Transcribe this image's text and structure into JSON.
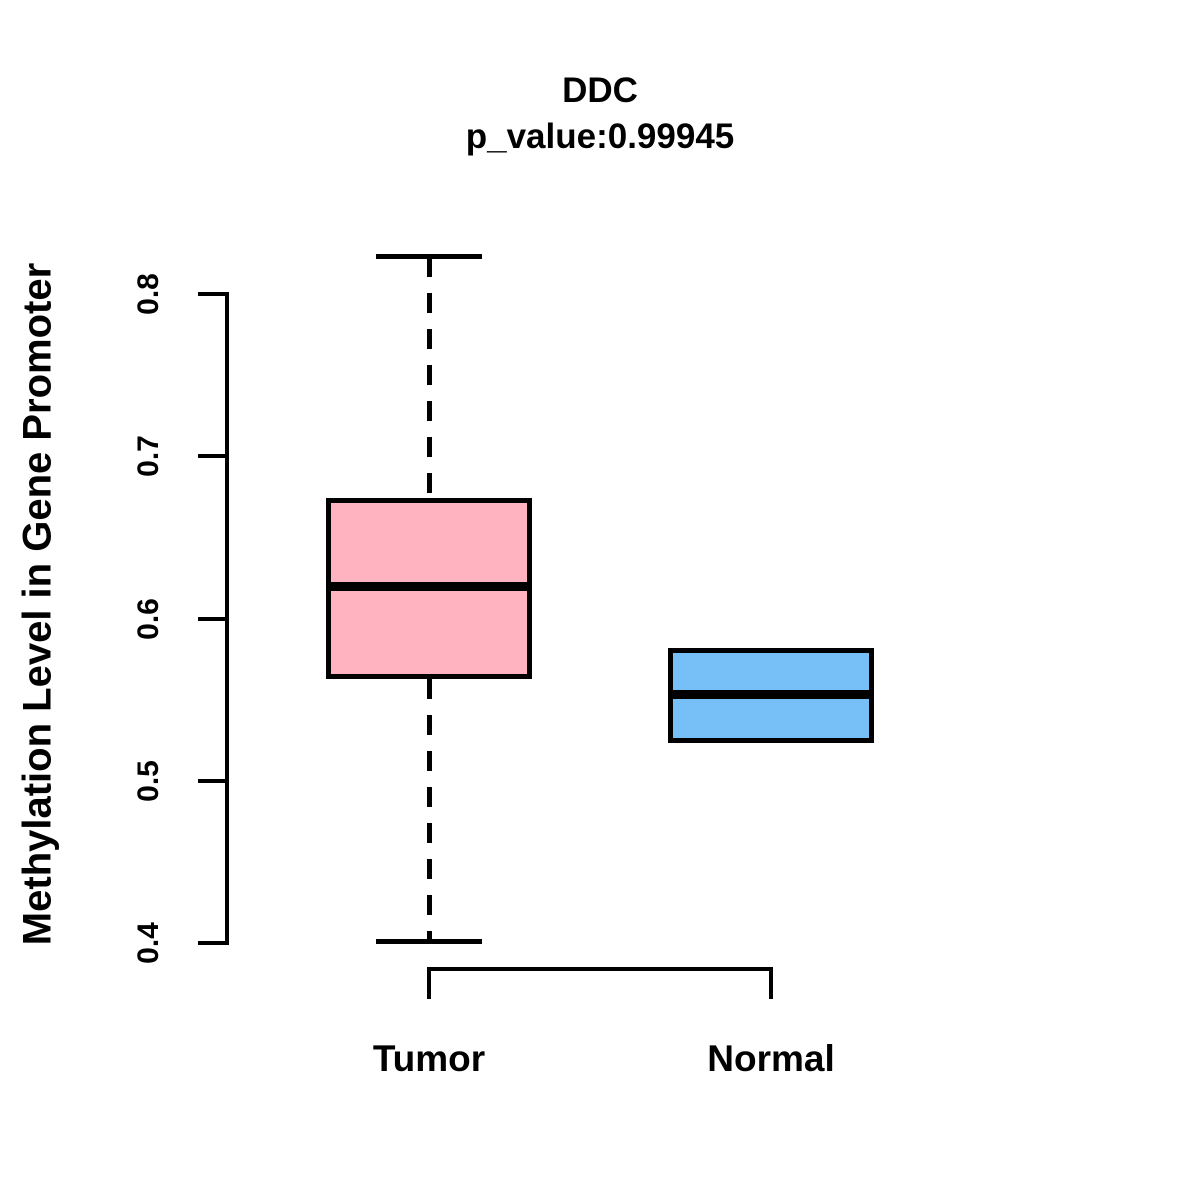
{
  "chart_data": {
    "type": "boxplot",
    "title": "DDC",
    "subtitle": "p_value:0.99945",
    "ylabel": "Methylation Level in Gene Promoter",
    "xlabel": "",
    "ylim": [
      0.4,
      0.8
    ],
    "yticks": [
      0.4,
      0.5,
      0.6,
      0.7,
      0.8
    ],
    "ytick_labels": [
      "0.4",
      "0.5",
      "0.6",
      "0.7",
      "0.8"
    ],
    "categories": [
      "Tumor",
      "Normal"
    ],
    "grid": false,
    "legend": "none",
    "series": [
      {
        "name": "Tumor",
        "fill_color": "#FFB3C1",
        "border_color": "#000000",
        "whisker_low": 0.401,
        "q1": 0.563,
        "median": 0.62,
        "q3": 0.674,
        "whisker_high": 0.823,
        "outliers": []
      },
      {
        "name": "Normal",
        "fill_color": "#76BFF7",
        "border_color": "#000000",
        "whisker_low": 0.523,
        "q1": 0.523,
        "median": 0.553,
        "q3": 0.582,
        "whisker_high": 0.582,
        "outliers": []
      }
    ]
  }
}
